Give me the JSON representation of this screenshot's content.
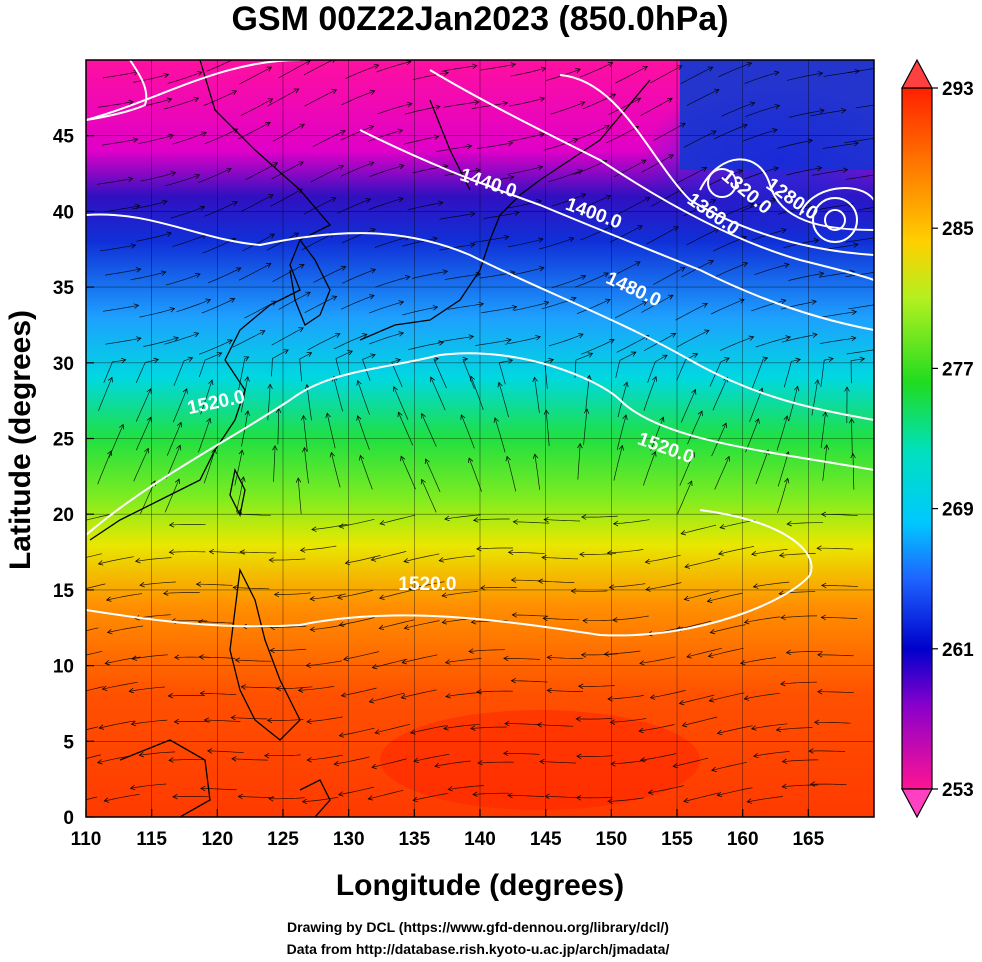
{
  "title": "GSM 00Z22Jan2023 (850.0hPa)",
  "xlabel": "Longitude (degrees)",
  "ylabel": "Latitude  (degrees)",
  "x_ticks": [
    "110",
    "115",
    "120",
    "125",
    "130",
    "135",
    "140",
    "145",
    "150",
    "155",
    "160",
    "165"
  ],
  "y_ticks": [
    "0",
    "5",
    "10",
    "15",
    "20",
    "25",
    "30",
    "35",
    "40",
    "45"
  ],
  "colorbar": {
    "ticks": [
      "293",
      "285",
      "277",
      "269",
      "261",
      "253"
    ],
    "stops": [
      "#ff1493",
      "#8800cc",
      "#0000cc",
      "#1e64ff",
      "#00c8ff",
      "#00e8d0",
      "#20dc20",
      "#b4f020",
      "#ffd000",
      "#ff8000",
      "#ff2000"
    ]
  },
  "contour_labels": [
    {
      "text": "1440.0",
      "lon": 140.5,
      "lat": 41.5,
      "rot": 18
    },
    {
      "text": "1400.0",
      "lon": 148.5,
      "lat": 39.5,
      "rot": 20
    },
    {
      "text": "1360.0",
      "lon": 157.5,
      "lat": 39.5,
      "rot": 35
    },
    {
      "text": "1320.0",
      "lon": 160.0,
      "lat": 41.0,
      "rot": 40
    },
    {
      "text": "1280.0",
      "lon": 163.5,
      "lat": 40.5,
      "rot": 35
    },
    {
      "text": "1480.0",
      "lon": 151.5,
      "lat": 34.5,
      "rot": 25
    },
    {
      "text": "1520.0",
      "lon": 120.0,
      "lat": 27.0,
      "rot": -12
    },
    {
      "text": "1520.0",
      "lon": 154.0,
      "lat": 24.0,
      "rot": 20
    },
    {
      "text": "1520.0",
      "lon": 136.0,
      "lat": 15.0,
      "rot": 0
    }
  ],
  "credits": [
    "Drawing by DCL (https://www.gfd-dennou.org/library/dcl/)",
    "Data from http://database.rish.kyoto-u.ac.jp/arch/jmadata/"
  ],
  "chart_data": {
    "type": "heatmap",
    "title": "GSM 00Z22Jan2023 (850.0hPa)",
    "xlabel": "Longitude (degrees)",
    "ylabel": "Latitude  (degrees)",
    "xlim": [
      110,
      170
    ],
    "ylim": [
      0,
      50
    ],
    "color_range": [
      253,
      293
    ],
    "overlays": [
      "geopotential height contours (white)",
      "wind streamlines (black)",
      "coastlines"
    ]
  }
}
